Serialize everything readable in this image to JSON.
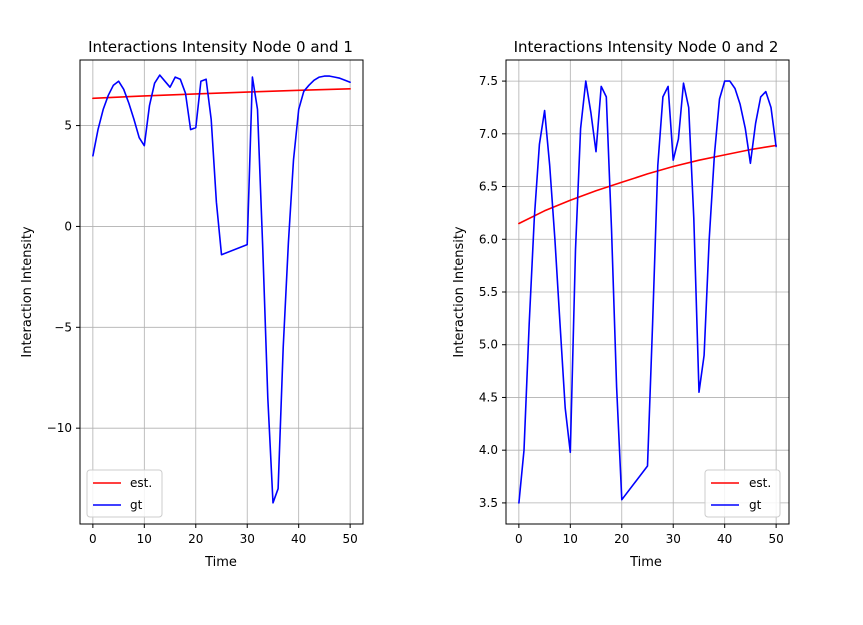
{
  "chart_data": [
    {
      "type": "line",
      "title": "Interactions Intensity Node 0 and 1",
      "xlabel": "Time",
      "ylabel": "Interaction Intensity",
      "xlim": [
        -2.5,
        52.5
      ],
      "ylim": [
        -14.75,
        8.25
      ],
      "xticks": [
        0,
        10,
        20,
        30,
        40,
        50
      ],
      "yticks": [
        5,
        0,
        -5,
        -10
      ],
      "ytick_labels": [
        "5",
        "0",
        "−5",
        "−10"
      ],
      "grid": true,
      "legend": "lower-left",
      "series": [
        {
          "name": "est.",
          "color": "#ff0000",
          "x": [
            0,
            10,
            20,
            30,
            40,
            50
          ],
          "y": [
            6.35,
            6.47,
            6.57,
            6.66,
            6.75,
            6.82
          ]
        },
        {
          "name": "gt",
          "color": "#0000ff",
          "x": [
            0,
            1,
            2,
            3,
            4,
            5,
            6,
            7,
            8,
            9,
            10,
            11,
            12,
            13,
            14,
            15,
            16,
            17,
            18,
            19,
            20,
            21,
            22,
            23,
            24,
            25,
            30,
            31,
            32,
            33,
            34,
            35,
            36,
            37,
            38,
            39,
            40,
            41,
            42,
            43,
            44,
            45,
            46,
            47,
            48,
            49,
            50
          ],
          "y": [
            3.5,
            4.8,
            5.8,
            6.5,
            7.0,
            7.2,
            6.8,
            6.1,
            5.3,
            4.4,
            4.0,
            6.0,
            7.1,
            7.5,
            7.2,
            6.9,
            7.4,
            7.3,
            6.6,
            4.8,
            4.9,
            7.2,
            7.3,
            5.3,
            1.2,
            -1.4,
            -0.9,
            7.4,
            5.8,
            -1.0,
            -8.5,
            -13.7,
            -13.0,
            -6.0,
            -0.8,
            3.3,
            5.8,
            6.7,
            7.0,
            7.25,
            7.4,
            7.45,
            7.45,
            7.4,
            7.35,
            7.25,
            7.15
          ]
        }
      ]
    },
    {
      "type": "line",
      "title": "Interactions Intensity Node 0 and 2",
      "xlabel": "Time",
      "ylabel": "Interaction Intensity",
      "xlim": [
        -2.5,
        52.5
      ],
      "ylim": [
        3.3,
        7.7
      ],
      "xticks": [
        0,
        10,
        20,
        30,
        40,
        50
      ],
      "yticks": [
        3.5,
        4.0,
        4.5,
        5.0,
        5.5,
        6.0,
        6.5,
        7.0,
        7.5
      ],
      "ytick_labels": [
        "3.5",
        "4.0",
        "4.5",
        "5.0",
        "5.5",
        "6.0",
        "6.5",
        "7.0",
        "7.5"
      ],
      "grid": true,
      "legend": "lower-right",
      "series": [
        {
          "name": "est.",
          "color": "#ff0000",
          "x": [
            0,
            5,
            10,
            15,
            20,
            25,
            30,
            35,
            40,
            45,
            50
          ],
          "y": [
            6.15,
            6.27,
            6.37,
            6.46,
            6.54,
            6.62,
            6.69,
            6.75,
            6.8,
            6.85,
            6.89
          ]
        },
        {
          "name": "gt",
          "color": "#0000ff",
          "x": [
            0,
            1,
            2,
            3,
            4,
            5,
            6,
            7,
            8,
            9,
            10,
            11,
            12,
            13,
            14,
            15,
            16,
            17,
            18,
            19,
            20,
            25,
            26,
            27,
            28,
            29,
            30,
            31,
            32,
            33,
            34,
            35,
            36,
            37,
            38,
            39,
            40,
            41,
            42,
            43,
            44,
            45,
            46,
            47,
            48,
            49,
            50
          ],
          "y": [
            3.5,
            4.0,
            5.2,
            6.2,
            6.9,
            7.22,
            6.7,
            6.0,
            5.2,
            4.4,
            3.98,
            5.9,
            7.05,
            7.5,
            7.2,
            6.83,
            7.45,
            7.35,
            6.1,
            4.6,
            3.53,
            3.85,
            5.2,
            6.7,
            7.35,
            7.45,
            6.75,
            6.95,
            7.48,
            7.25,
            6.2,
            4.55,
            4.9,
            6.0,
            6.8,
            7.33,
            7.5,
            7.5,
            7.43,
            7.28,
            7.05,
            6.72,
            7.1,
            7.35,
            7.4,
            7.25,
            6.88
          ]
        }
      ]
    }
  ]
}
